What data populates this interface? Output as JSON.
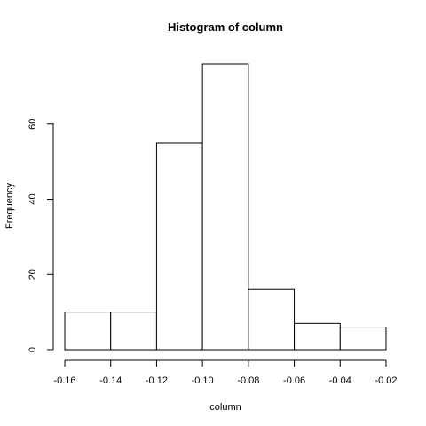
{
  "chart_data": {
    "type": "bar",
    "title": "Histogram of column",
    "xlabel": "column",
    "ylabel": "Frequency",
    "bins": [
      {
        "x0": -0.16,
        "x1": -0.14,
        "count": 10
      },
      {
        "x0": -0.14,
        "x1": -0.12,
        "count": 10
      },
      {
        "x0": -0.12,
        "x1": -0.1,
        "count": 55
      },
      {
        "x0": -0.1,
        "x1": -0.08,
        "count": 76
      },
      {
        "x0": -0.08,
        "x1": -0.06,
        "count": 16
      },
      {
        "x0": -0.06,
        "x1": -0.04,
        "count": 7
      },
      {
        "x0": -0.04,
        "x1": -0.02,
        "count": 6
      }
    ],
    "xlim": [
      -0.16,
      -0.02
    ],
    "ylim": [
      0,
      76
    ],
    "x_ticks": [
      "-0.16",
      "-0.14",
      "-0.12",
      "-0.10",
      "-0.08",
      "-0.06",
      "-0.04",
      "-0.02"
    ],
    "x_tick_values": [
      -0.16,
      -0.14,
      -0.12,
      -0.1,
      -0.08,
      -0.06,
      -0.04,
      -0.02
    ],
    "y_ticks": [
      "0",
      "20",
      "40",
      "60"
    ],
    "y_tick_values": [
      0,
      20,
      40,
      60
    ],
    "grid": false,
    "legend": "none"
  }
}
